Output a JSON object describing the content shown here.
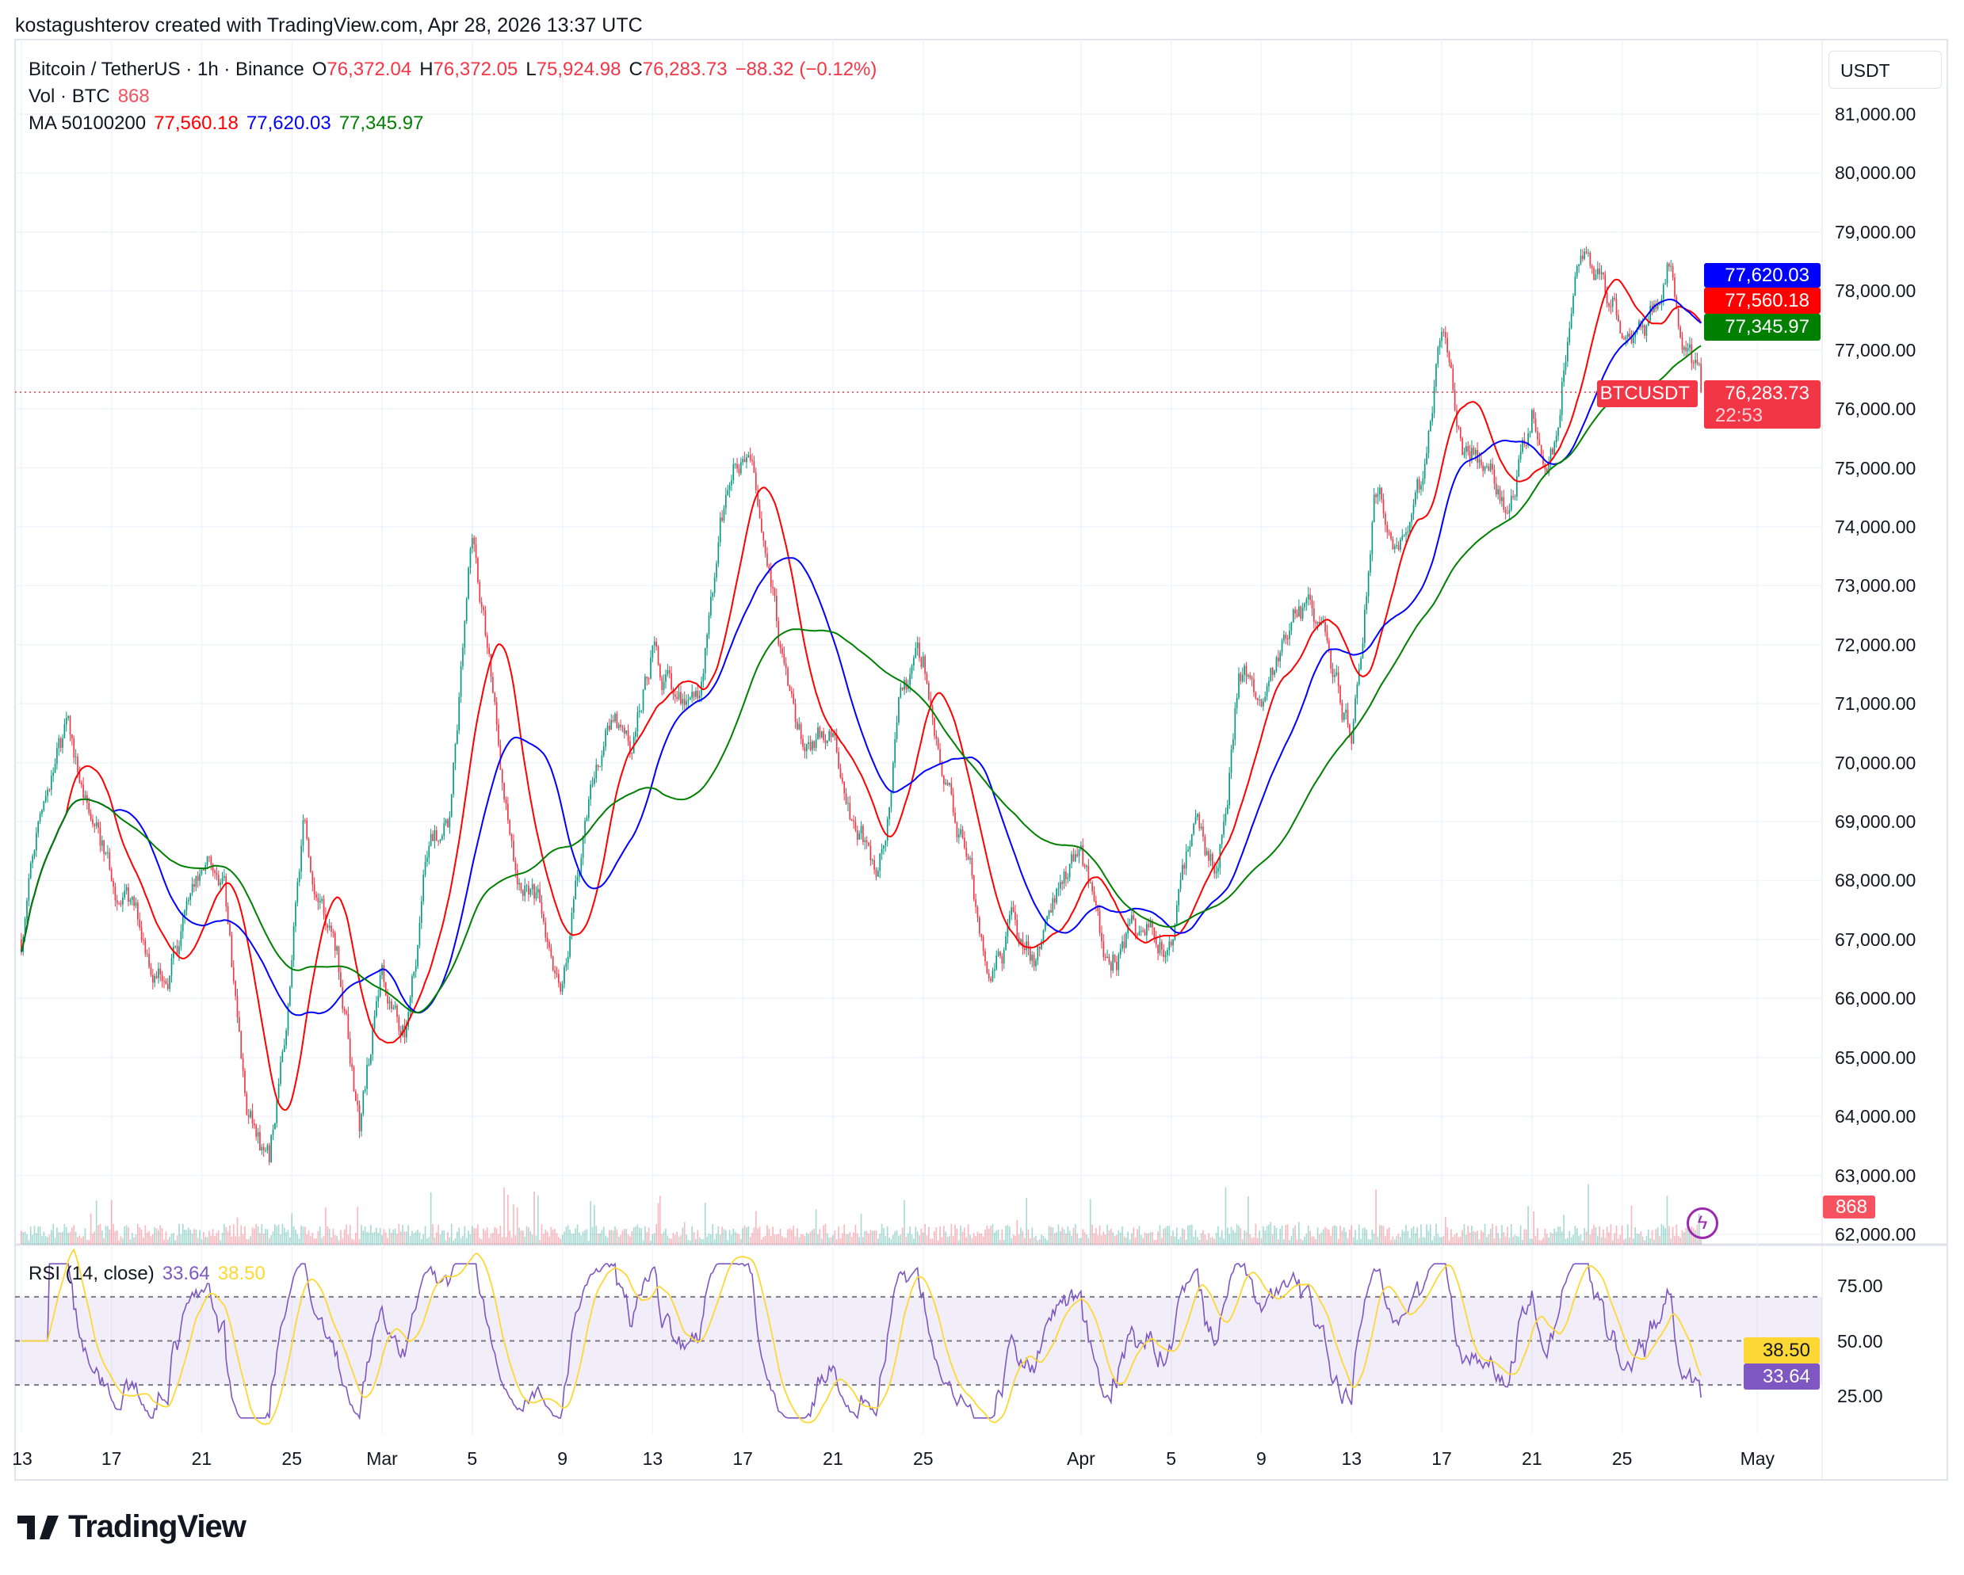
{
  "credit": "kostagushterov created with TradingView.com, Apr 28, 2026 13:37 UTC",
  "legend": {
    "symbol": "Bitcoin / TetherUS · 1h · Binance",
    "o_label": "O",
    "o": "76,372.04",
    "h_label": "H",
    "h": "76,372.05",
    "l_label": "L",
    "l": "75,924.98",
    "c_label": "C",
    "c": "76,283.73",
    "change": "−88.32 (−0.12%)",
    "vol_label": "Vol · BTC",
    "vol": "868",
    "ma_label": "MA 50100200",
    "ma50": "77,560.18",
    "ma100": "77,620.03",
    "ma200": "77,345.97",
    "rsi_label": "RSI (14, close)",
    "rsi": "33.64",
    "rsi_ma": "38.50"
  },
  "axis": {
    "currency": "USDT",
    "price_ticks": [
      "81,000.00",
      "80,000.00",
      "79,000.00",
      "78,000.00",
      "77,000.00",
      "76,000.00",
      "75,000.00",
      "74,000.00",
      "73,000.00",
      "72,000.00",
      "71,000.00",
      "70,000.00",
      "69,000.00",
      "68,000.00",
      "67,000.00",
      "66,000.00",
      "65,000.00",
      "64,000.00",
      "63,000.00",
      "62,000.00"
    ],
    "rsi_ticks": [
      "75.00",
      "50.00",
      "25.00"
    ],
    "time_labels": [
      "13",
      "17",
      "21",
      "25",
      "Mar",
      "5",
      "9",
      "13",
      "17",
      "21",
      "25",
      "Apr",
      "5",
      "9",
      "13",
      "17",
      "21",
      "25",
      "May"
    ]
  },
  "tags": {
    "ma100": "77,620.03",
    "ma50": "77,560.18",
    "ma200": "77,345.97",
    "symbol": "BTCUSDT",
    "price": "76,283.73",
    "countdown": "22:53",
    "volume": "868",
    "rsi_ma": "38.50",
    "rsi": "33.64"
  },
  "colors": {
    "up": "#089981",
    "down": "#f23645",
    "ma50": "#ff0000",
    "ma100": "#0000ff",
    "ma200": "#008000",
    "rsi": "#7e57c2",
    "rsi_ma": "#fdd835"
  },
  "brand": "TradingView",
  "chart_data": {
    "type": "candlestick",
    "title": "Bitcoin / TetherUS · 1h · Binance",
    "x_unit": "days since Feb 13",
    "ylim": [
      62000,
      81500
    ],
    "waypoints": [
      [
        0,
        67000
      ],
      [
        1,
        69500
      ],
      [
        2,
        70500
      ],
      [
        3,
        69000
      ],
      [
        4,
        68000
      ],
      [
        6,
        66500
      ],
      [
        7,
        67000
      ],
      [
        8,
        68000
      ],
      [
        9,
        68000
      ],
      [
        10,
        64000
      ],
      [
        11,
        63000
      ],
      [
        12,
        66500
      ],
      [
        12.5,
        69000
      ],
      [
        14,
        67000
      ],
      [
        15,
        64000
      ],
      [
        16,
        66500
      ],
      [
        17,
        65500
      ],
      [
        18,
        68500
      ],
      [
        19,
        69000
      ],
      [
        20,
        73500
      ],
      [
        21,
        71000
      ],
      [
        22,
        68000
      ],
      [
        23,
        67500
      ],
      [
        24,
        66500
      ],
      [
        25,
        69000
      ],
      [
        26,
        71000
      ],
      [
        27,
        70000
      ],
      [
        28,
        72000
      ],
      [
        29,
        71000
      ],
      [
        30,
        71000
      ],
      [
        31,
        74000
      ],
      [
        32,
        75300
      ],
      [
        33,
        74000
      ],
      [
        34,
        71000
      ],
      [
        35,
        70000
      ],
      [
        36,
        70500
      ],
      [
        37,
        69000
      ],
      [
        38,
        68000
      ],
      [
        39,
        71000
      ],
      [
        40,
        71500
      ],
      [
        41,
        69500
      ],
      [
        42,
        68500
      ],
      [
        43,
        66000
      ],
      [
        44,
        67000
      ],
      [
        45,
        66500
      ],
      [
        46,
        68000
      ],
      [
        47,
        68500
      ],
      [
        48,
        66500
      ],
      [
        49,
        67000
      ],
      [
        50,
        67000
      ],
      [
        51,
        67000
      ],
      [
        52,
        69000
      ],
      [
        53,
        68000
      ],
      [
        54,
        71500
      ],
      [
        55,
        71000
      ],
      [
        56,
        72000
      ],
      [
        57,
        72500
      ],
      [
        58,
        72000
      ],
      [
        59,
        70500
      ],
      [
        60,
        74500
      ],
      [
        61,
        74000
      ],
      [
        62,
        74500
      ],
      [
        63,
        77500
      ],
      [
        64,
        75500
      ],
      [
        65,
        75000
      ],
      [
        66,
        74000
      ],
      [
        67,
        76000
      ],
      [
        68,
        75500
      ],
      [
        69,
        79000
      ],
      [
        70,
        78000
      ],
      [
        71,
        77500
      ],
      [
        72,
        77500
      ],
      [
        73,
        78500
      ],
      [
        74.5,
        76283.73
      ]
    ],
    "last_close": 76283.73,
    "ma_periods": [
      50,
      100,
      200
    ],
    "rsi_period": 14,
    "rsi_levels": [
      30,
      50,
      70
    ]
  }
}
